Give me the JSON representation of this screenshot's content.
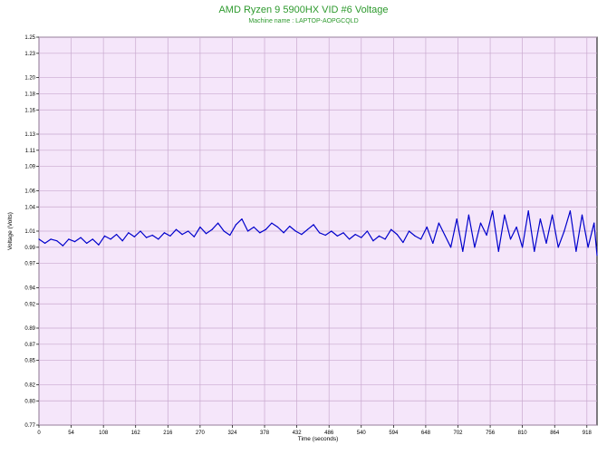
{
  "colors": {
    "plot_background": "#f5e6fa",
    "grid": "#c9a9cf",
    "series": "#0000cc",
    "title": "#2e9a2e"
  },
  "chart_data": {
    "type": "line",
    "title": "AMD Ryzen 9 5900HX VID #6 Voltage",
    "subtitle": "Machine name : LAPTOP-AOPGCQLD",
    "xlabel": "Time (seconds)",
    "ylabel": "Voltage (Volts)",
    "xlim": [
      0,
      935
    ],
    "ylim": [
      0.77,
      1.25
    ],
    "x_ticks": [
      "0",
      "54",
      "108",
      "162",
      "216",
      "270",
      "324",
      "378",
      "432",
      "486",
      "540",
      "594",
      "648",
      "702",
      "756",
      "810",
      "864",
      "918"
    ],
    "y_ticks": [
      "0.77",
      "0.80",
      "0.82",
      "0.85",
      "0.87",
      "0.89",
      "0.92",
      "0.94",
      "0.97",
      "0.99",
      "1.01",
      "1.04",
      "1.06",
      "1.09",
      "1.11",
      "1.13",
      "1.16",
      "1.18",
      "1.20",
      "1.23",
      "1.25"
    ],
    "grid": true,
    "series": [
      {
        "x": [
          0,
          10,
          20,
          30,
          40,
          50,
          60,
          70,
          80,
          90,
          100,
          110,
          120,
          130,
          140,
          150,
          160,
          170,
          180,
          190,
          200,
          210,
          220,
          230,
          240,
          250,
          260,
          270,
          280,
          290,
          300,
          310,
          320,
          330,
          340,
          350,
          360,
          370,
          380,
          390,
          400,
          410,
          420,
          430,
          440,
          450,
          460,
          470,
          480,
          490,
          500,
          510,
          520,
          530,
          540,
          550,
          560,
          570,
          580,
          590,
          600,
          610,
          620,
          630,
          640,
          650,
          660,
          670,
          680,
          690,
          700,
          710,
          720,
          730,
          740,
          750,
          760,
          770,
          780,
          790,
          800,
          810,
          820,
          830,
          840,
          850,
          860,
          870,
          880,
          890,
          900,
          910,
          920,
          930,
          935
        ],
        "values": [
          1.0,
          0.995,
          1.0,
          0.998,
          0.992,
          1.0,
          0.997,
          1.002,
          0.995,
          1.0,
          0.993,
          1.004,
          1.0,
          1.006,
          0.998,
          1.008,
          1.003,
          1.01,
          1.002,
          1.005,
          1.0,
          1.008,
          1.004,
          1.012,
          1.006,
          1.01,
          1.003,
          1.015,
          1.007,
          1.012,
          1.02,
          1.01,
          1.005,
          1.018,
          1.025,
          1.01,
          1.015,
          1.008,
          1.012,
          1.02,
          1.015,
          1.008,
          1.016,
          1.01,
          1.006,
          1.012,
          1.018,
          1.008,
          1.005,
          1.01,
          1.004,
          1.008,
          1.0,
          1.006,
          1.002,
          1.01,
          0.998,
          1.004,
          1.0,
          1.012,
          1.006,
          0.996,
          1.01,
          1.004,
          1.0,
          1.015,
          0.995,
          1.02,
          1.005,
          0.99,
          1.025,
          0.985,
          1.03,
          0.99,
          1.02,
          1.005,
          1.035,
          0.985,
          1.03,
          1.0,
          1.015,
          0.99,
          1.035,
          0.985,
          1.025,
          0.995,
          1.03,
          0.99,
          1.01,
          1.035,
          0.985,
          1.03,
          0.99,
          1.02,
          0.98
        ]
      }
    ]
  }
}
